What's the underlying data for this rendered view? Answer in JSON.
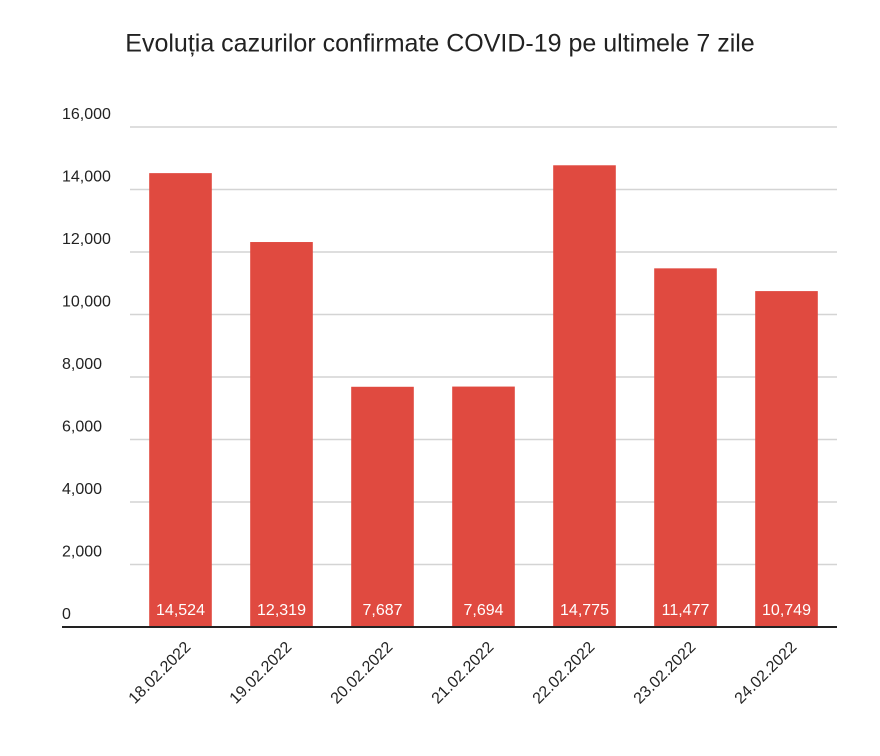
{
  "chart_data": {
    "type": "bar",
    "title": "Evoluția cazurilor confirmate COVID-19 pe ultimele 7 zile",
    "categories": [
      "18.02.2022",
      "19.02.2022",
      "20.02.2022",
      "21.02.2022",
      "22.02.2022",
      "23.02.2022",
      "24.02.2022"
    ],
    "values": [
      14524,
      12319,
      7687,
      7694,
      14775,
      11477,
      10749
    ],
    "value_labels": [
      "14,524",
      "12,319",
      "7,687",
      "7,694",
      "14,775",
      "11,477",
      "10,749"
    ],
    "color": "#e04a40",
    "ylim": [
      0,
      16000
    ],
    "yticks": [
      0,
      {
        "value": 2000,
        "label": "2,000"
      },
      {
        "value": 4000,
        "label": "4,000"
      },
      {
        "value": 6000,
        "label": "6,000"
      },
      {
        "value": 8000,
        "label": "8,000"
      },
      {
        "value": 10000,
        "label": "10,000"
      },
      {
        "value": 12000,
        "label": "12,000"
      },
      {
        "value": 14000,
        "label": "14,000"
      },
      {
        "value": 16000,
        "label": "16,000"
      }
    ],
    "grid": true
  }
}
